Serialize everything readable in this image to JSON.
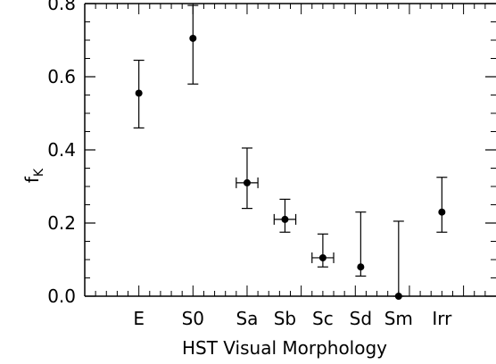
{
  "chart_data": {
    "type": "scatter",
    "title": "",
    "xlabel": "HST Visual Morphology",
    "ylabel": "f",
    "ylabel_subscript": "K",
    "categories": [
      "E",
      "S0",
      "Sa",
      "Sb",
      "Sc",
      "Sd",
      "Sm",
      "Irr"
    ],
    "ylim": [
      0.0,
      0.8
    ],
    "y_ticks": [
      "0.0",
      "0.2",
      "0.4",
      "0.6",
      "0.8"
    ],
    "grid": false,
    "legend": "none",
    "marker_color": "#000000",
    "points": [
      {
        "category": "E",
        "x": 1.0,
        "y": 0.555,
        "y_low": 0.46,
        "y_high": 0.645,
        "x_err": 0
      },
      {
        "category": "S0",
        "x": 2.0,
        "y": 0.705,
        "y_low": 0.58,
        "y_high": 0.795,
        "x_err": 0
      },
      {
        "category": "Sa",
        "x": 3.0,
        "y": 0.31,
        "y_low": 0.24,
        "y_high": 0.405,
        "x_err": 0.2
      },
      {
        "category": "Sb",
        "x": 3.7,
        "y": 0.21,
        "y_low": 0.175,
        "y_high": 0.265,
        "x_err": 0.2
      },
      {
        "category": "Sc",
        "x": 4.4,
        "y": 0.105,
        "y_low": 0.08,
        "y_high": 0.17,
        "x_err": 0.2
      },
      {
        "category": "Sd",
        "x": 5.1,
        "y": 0.08,
        "y_low": 0.055,
        "y_high": 0.23,
        "x_err": 0
      },
      {
        "category": "Sm",
        "x": 5.8,
        "y": 0.0,
        "y_low": 0.0,
        "y_high": 0.205,
        "x_err": 0
      },
      {
        "category": "Irr",
        "x": 6.6,
        "y": 0.23,
        "y_low": 0.175,
        "y_high": 0.325,
        "x_err": 0
      }
    ]
  }
}
